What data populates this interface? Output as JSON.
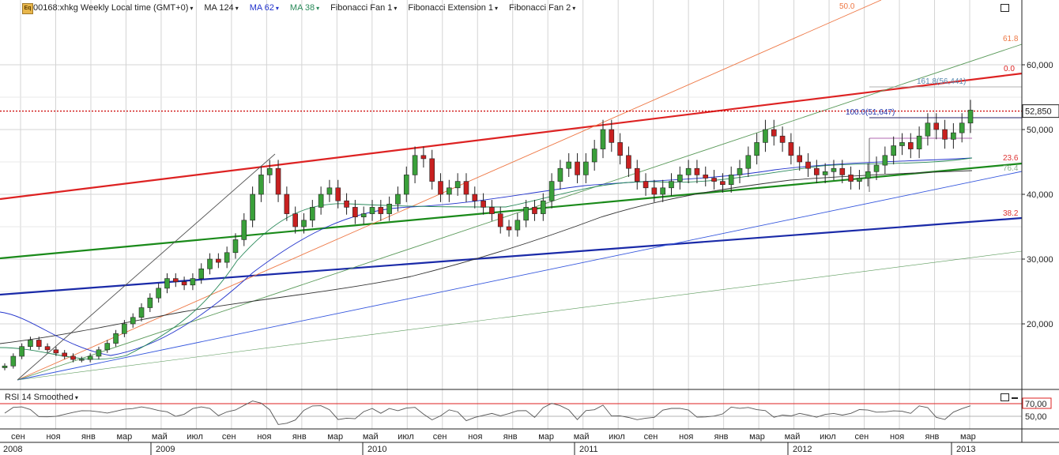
{
  "header": {
    "symbol_label": "00168:xhkg Weekly Local time (GMT+0)",
    "indicators": [
      {
        "label": "MA 124",
        "color": "#222222"
      },
      {
        "label": "MA 62",
        "color": "#2233cc"
      },
      {
        "label": "MA 38",
        "color": "#2a8a5a"
      },
      {
        "label": "Fibonacci Fan 1",
        "color": "#222222"
      },
      {
        "label": "Fibonacci Extension 1",
        "color": "#222222"
      },
      {
        "label": "Fibonacci Fan 2",
        "color": "#222222"
      }
    ],
    "caret": "▾"
  },
  "price_axis": {
    "ticks": [
      {
        "value": 60000,
        "label": "60,000"
      },
      {
        "value": 50000,
        "label": "50,000"
      },
      {
        "value": 40000,
        "label": "40,000"
      },
      {
        "value": 30000,
        "label": "30,000"
      },
      {
        "value": 20000,
        "label": "20,000"
      }
    ],
    "current_price_label": "52,850",
    "current_price": 52850
  },
  "fib_labels": {
    "fan_top": "50.0",
    "fan_618": "61.8",
    "fan_00": "0.0",
    "ext_1618": "161.8(56,441)",
    "ext_100": "100.0(51,647)",
    "fan_236": "23.6",
    "fan_764": "76.4",
    "fan_382": "38.2"
  },
  "rsi": {
    "title": "RSI 14 Smoothed",
    "ticks": [
      {
        "value": 70,
        "label": "70,00"
      },
      {
        "value": 50,
        "label": "50,00"
      }
    ],
    "overbought": 70
  },
  "time_axis": {
    "months": [
      "сен",
      "ноя",
      "янв",
      "мар",
      "май",
      "июл",
      "сен",
      "ноя",
      "янв",
      "мар",
      "май",
      "июл",
      "сен",
      "ноя",
      "янв",
      "мар",
      "май",
      "июл",
      "сен",
      "ноя",
      "янв",
      "мар",
      "май",
      "июл",
      "сен",
      "ноя",
      "янв",
      "мар"
    ],
    "years": [
      "2008",
      "2009",
      "2010",
      "2011",
      "2012",
      "2013"
    ]
  },
  "chart_data": {
    "type": "candlestick",
    "interval": "weekly",
    "y_range": [
      10000,
      70000
    ],
    "close_series_approx": [
      13500,
      15000,
      16500,
      17500,
      16500,
      16000,
      15500,
      15000,
      14500,
      14500,
      15000,
      16000,
      17000,
      18500,
      20000,
      21000,
      22500,
      24000,
      25500,
      27000,
      26500,
      26000,
      27000,
      28500,
      30000,
      29500,
      31000,
      33000,
      36000,
      40000,
      43000,
      44000,
      40000,
      37000,
      35000,
      36000,
      38000,
      40000,
      41000,
      39000,
      38000,
      36500,
      37000,
      38000,
      37000,
      38500,
      40000,
      43000,
      46000,
      45500,
      42000,
      40000,
      41000,
      42000,
      40000,
      39000,
      38000,
      37000,
      35000,
      34500,
      36000,
      38000,
      37000,
      39000,
      42000,
      44000,
      45000,
      43000,
      45000,
      47000,
      50000,
      48000,
      46000,
      44000,
      42000,
      41000,
      40000,
      41000,
      42000,
      43000,
      44000,
      43000,
      42500,
      42000,
      41500,
      43000,
      44000,
      46000,
      48000,
      50000,
      49000,
      48000,
      46000,
      45000,
      44000,
      43000,
      43500,
      44000,
      43000,
      42000,
      42500,
      43500,
      44500,
      46000,
      47500,
      48000,
      47000,
      49000,
      51000,
      50000,
      48500,
      49500,
      51000,
      53000
    ]
  }
}
